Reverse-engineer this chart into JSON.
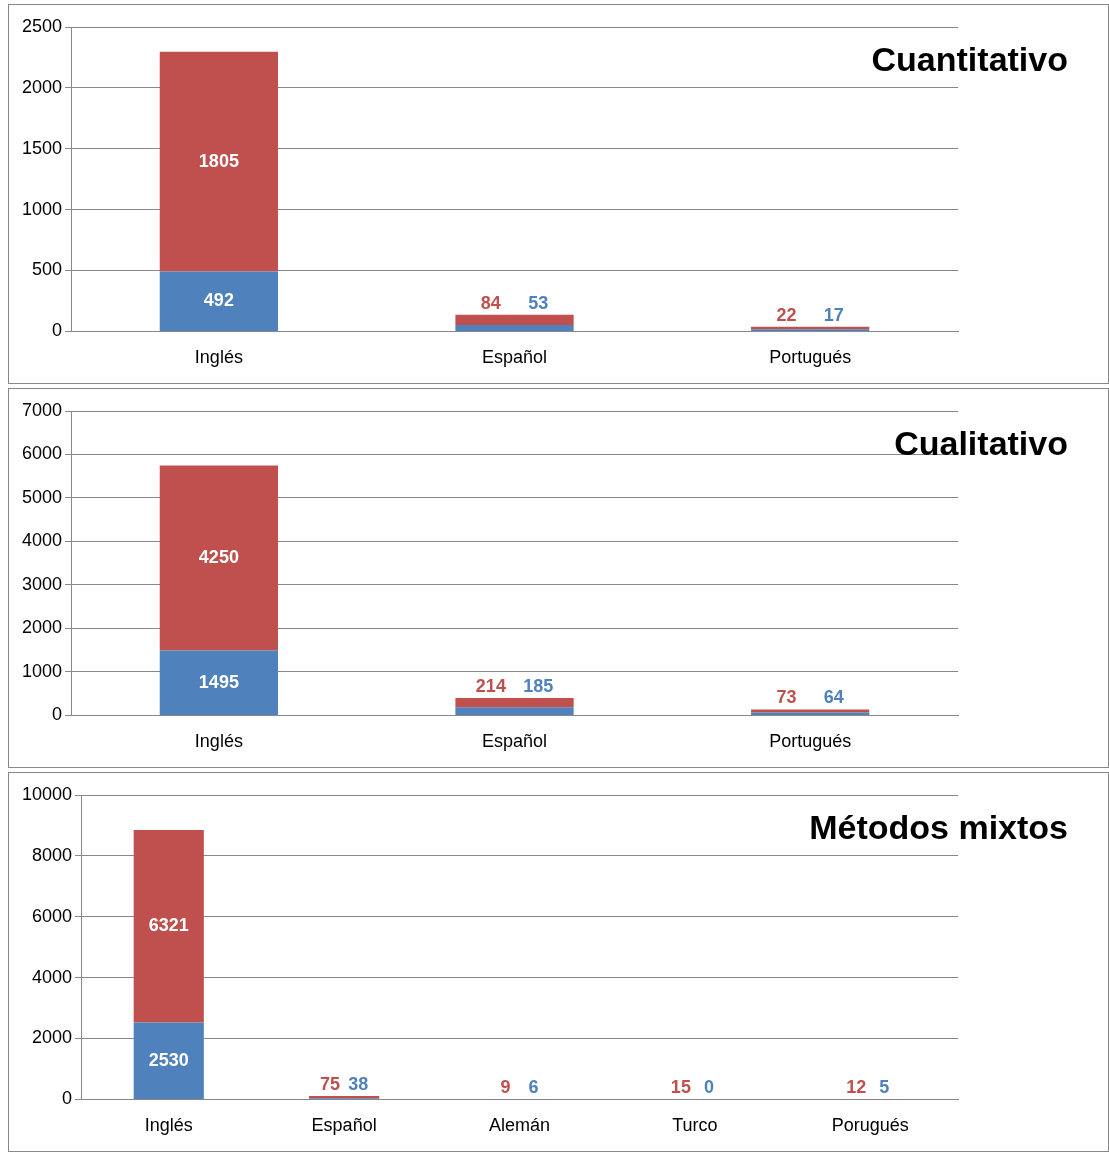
{
  "chart_data": [
    {
      "type": "bar",
      "title": "Cuantitativo",
      "categories": [
        "Inglés",
        "Español",
        "Portugués"
      ],
      "stacked": true,
      "grid": "y",
      "legend": false,
      "data_labels": true,
      "ylim": [
        0,
        2500
      ],
      "yticks": [
        0,
        500,
        1000,
        1500,
        2000,
        2500
      ],
      "series": [
        {
          "color": "#4f81bd",
          "values": [
            492,
            53,
            17
          ]
        },
        {
          "color": "#c0504d",
          "values": [
            1805,
            84,
            22
          ]
        }
      ]
    },
    {
      "type": "bar",
      "title": "Cualitativo",
      "categories": [
        "Inglés",
        "Español",
        "Portugués"
      ],
      "stacked": true,
      "grid": "y",
      "legend": false,
      "data_labels": true,
      "ylim": [
        0,
        7000
      ],
      "yticks": [
        0,
        1000,
        2000,
        3000,
        4000,
        5000,
        6000,
        7000
      ],
      "series": [
        {
          "color": "#4f81bd",
          "values": [
            1495,
            185,
            64
          ]
        },
        {
          "color": "#c0504d",
          "values": [
            4250,
            214,
            73
          ]
        }
      ]
    },
    {
      "type": "bar",
      "title": "Métodos mixtos",
      "categories": [
        "Inglés",
        "Español",
        "Alemán",
        "Turco",
        "Porugués"
      ],
      "stacked": true,
      "grid": "y",
      "legend": false,
      "data_labels": true,
      "ylim": [
        0,
        10000
      ],
      "yticks": [
        0,
        2000,
        4000,
        6000,
        8000,
        10000
      ],
      "series": [
        {
          "color": "#4f81bd",
          "values": [
            2530,
            38,
            6,
            0,
            5
          ]
        },
        {
          "color": "#c0504d",
          "values": [
            6321,
            75,
            9,
            15,
            12
          ]
        }
      ]
    }
  ]
}
